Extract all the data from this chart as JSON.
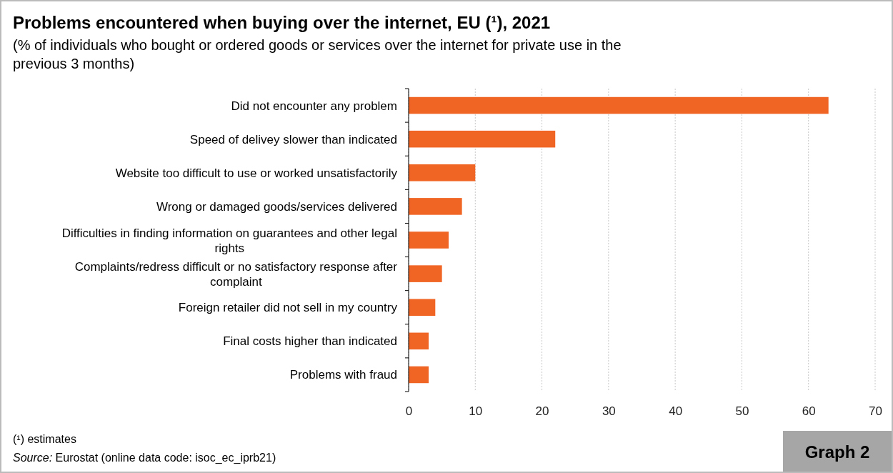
{
  "chart_data": {
    "type": "bar",
    "orientation": "horizontal",
    "title": "Problems encountered when buying over the internet, EU (¹), 2021",
    "subtitle": "(% of individuals who bought or ordered goods or services over the internet for private use in the previous 3 months)",
    "categories": [
      "Did not encounter any problem",
      "Speed of delivey slower than indicated",
      "Website too difficult to use or worked unsatisfactorily",
      "Wrong or damaged goods/services delivered",
      "Difficulties in finding information on guarantees and other legal rights",
      "Complaints/redress difficult or no satisfactory response after complaint",
      "Foreign retailer did not sell in my country",
      "Final costs higher than indicated",
      "Problems with fraud"
    ],
    "values": [
      63,
      22,
      10,
      8,
      6,
      5,
      4,
      3,
      3
    ],
    "color": "#f06424",
    "xlim": [
      0,
      70
    ],
    "xticks": [
      0,
      10,
      20,
      30,
      40,
      50,
      60,
      70
    ],
    "grid": "x",
    "annotations": [
      "(¹) estimates",
      "Source: Eurostat (online data code: isoc_ec_iprb21)",
      "Graph 2"
    ]
  }
}
